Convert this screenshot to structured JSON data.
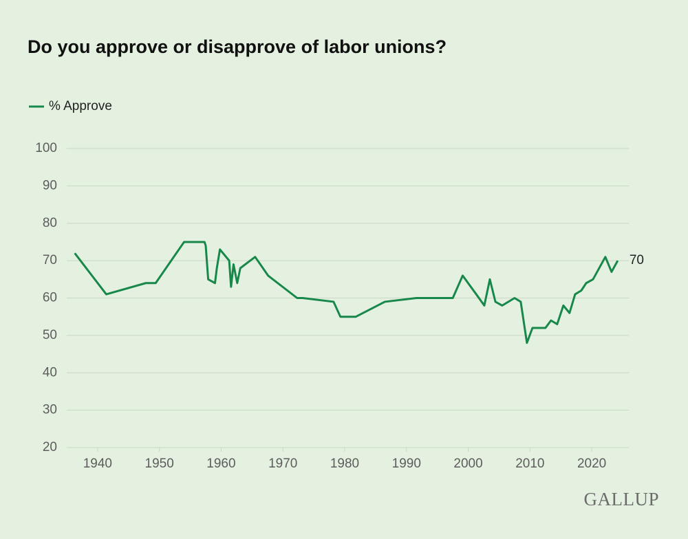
{
  "chart_data": {
    "type": "line",
    "title": "Do you approve or disapprove of labor unions?",
    "x": [
      1936.3,
      1941.4,
      1947.8,
      1949.4,
      1954.0,
      1957.3,
      1957.5,
      1957.9,
      1959.0,
      1959.3,
      1959.8,
      1961.3,
      1961.6,
      1962.0,
      1962.6,
      1963.1,
      1965.5,
      1967.6,
      1972.3,
      1973.2,
      1978.2,
      1979.3,
      1981.8,
      1986.5,
      1991.6,
      1997.5,
      1999.1,
      2001.3,
      2002.6,
      2003.5,
      2004.4,
      2005.5,
      2007.5,
      2008.5,
      2009.5,
      2010.4,
      2012.5,
      2013.4,
      2014.4,
      2015.4,
      2016.4,
      2017.3,
      2018.3,
      2019.1,
      2020.2,
      2022.2,
      2023.2,
      2024.2
    ],
    "series": [
      {
        "name": "% Approve",
        "color": "#17874a",
        "values": [
          72,
          61,
          64,
          64,
          75,
          75,
          74,
          65,
          64,
          68,
          73,
          70,
          63,
          69,
          64,
          68,
          71,
          66,
          60,
          60,
          59,
          55,
          55,
          59,
          60,
          60,
          66,
          61,
          58,
          65,
          59,
          58,
          60,
          59,
          48,
          52,
          52,
          54,
          53,
          58,
          56,
          61,
          62,
          64,
          65,
          71,
          67,
          70
        ]
      }
    ],
    "xlim": [
      1935,
      2026
    ],
    "xticks": [
      1940,
      1950,
      1960,
      1970,
      1980,
      1990,
      2000,
      2010,
      2020
    ],
    "ylim": [
      20,
      100
    ],
    "yticks": [
      20,
      30,
      40,
      50,
      60,
      70,
      80,
      90,
      100
    ],
    "grid": true,
    "legend": "top-left"
  },
  "footer": {
    "logo": "GALLUP"
  }
}
